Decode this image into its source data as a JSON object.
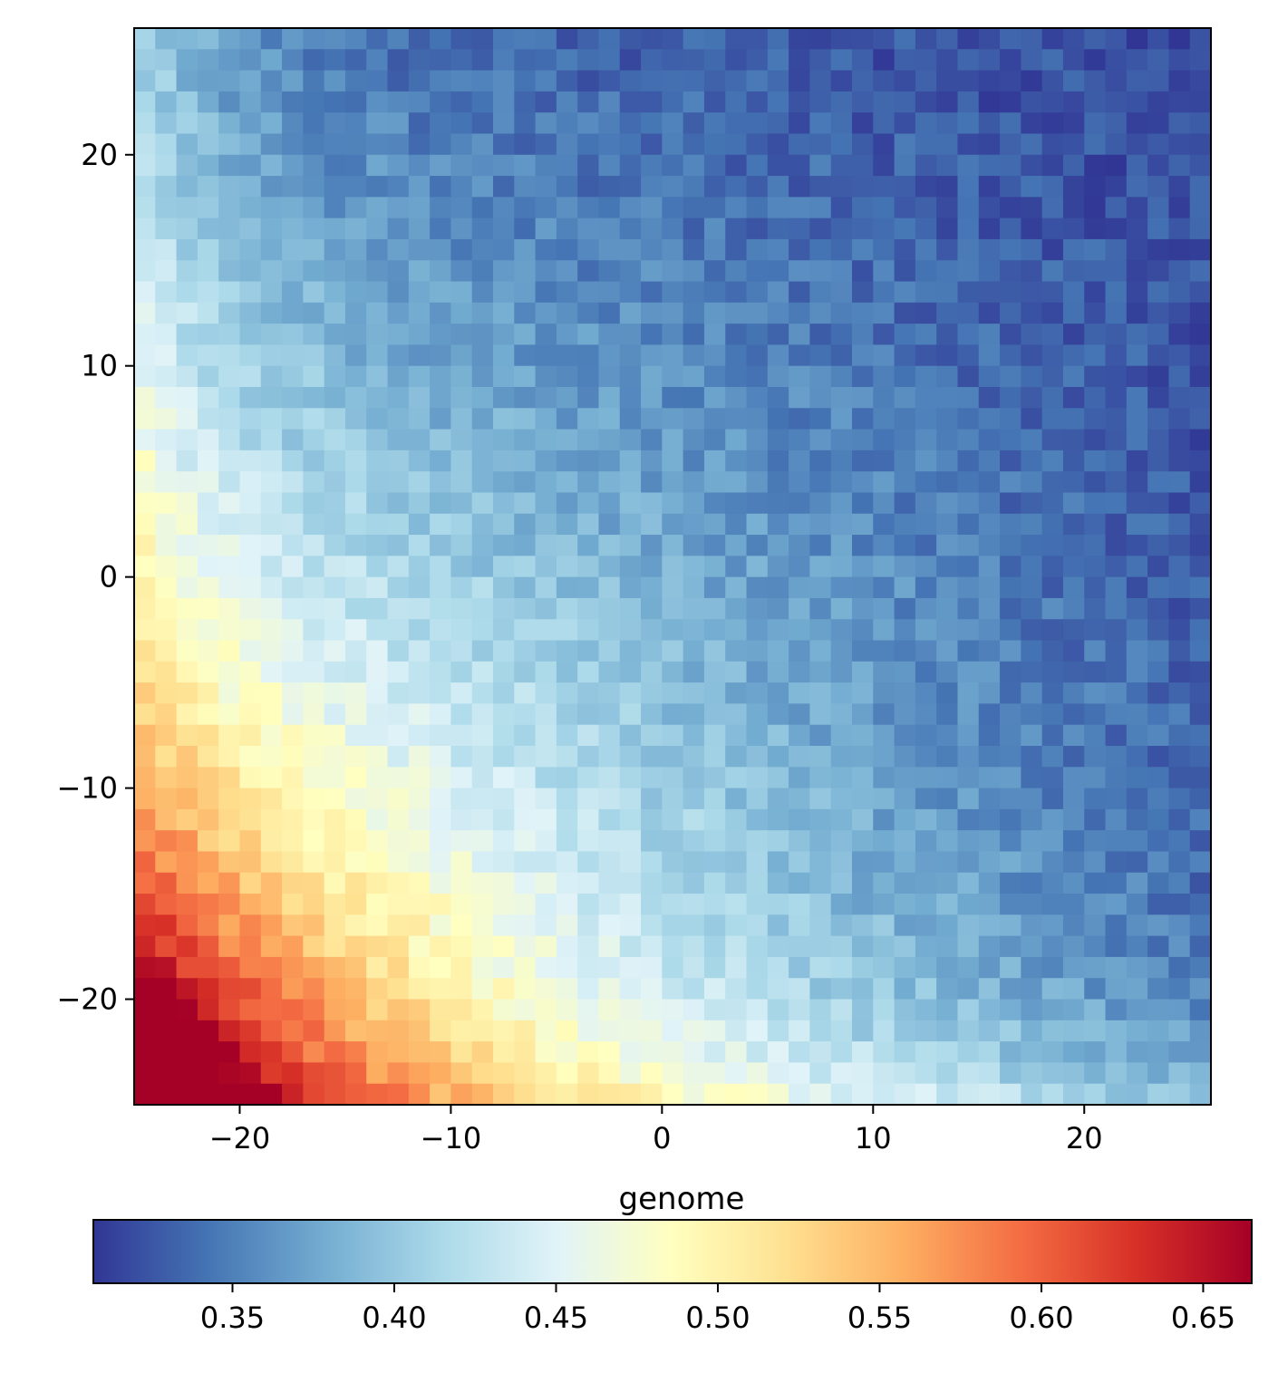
{
  "chart_data": {
    "type": "heatmap",
    "title": "",
    "xlabel": "genome",
    "ylabel": "",
    "grid": false,
    "xlim": [
      -25,
      26
    ],
    "ylim": [
      -25,
      26
    ],
    "x_ticks": [
      -20,
      -10,
      0,
      10,
      20
    ],
    "y_ticks": [
      -20,
      -10,
      0,
      10,
      20
    ],
    "x_tick_labels": [
      "−20",
      "−10",
      "0",
      "10",
      "20"
    ],
    "y_tick_labels": [
      "−20",
      "−10",
      "0",
      "10",
      "20"
    ],
    "grid_cells": [
      51,
      51
    ],
    "colormap": "RdYlBu_r",
    "colorbar": {
      "orientation": "horizontal",
      "position": "bottom",
      "range": [
        0.307,
        0.665
      ],
      "ticks": [
        0.35,
        0.4,
        0.45,
        0.5,
        0.55,
        0.6,
        0.65
      ],
      "tick_labels": [
        "0.35",
        "0.40",
        "0.45",
        "0.50",
        "0.55",
        "0.60",
        "0.65"
      ]
    },
    "value_model": {
      "description": "Values decay from ~0.66 at the lower-left corner (-25,-25) to ~0.31 at the upper-right corner (26,26), with a strong diagonal band of higher values along the left and bottom edges.",
      "corner_lower_left": 0.66,
      "corner_upper_right": 0.32,
      "left_edge_mid": 0.5,
      "bottom_edge_mid": 0.48,
      "center": 0.4
    }
  },
  "colors": {
    "stops": [
      "#313695",
      "#4575b4",
      "#74add1",
      "#abd9e9",
      "#e0f3f8",
      "#ffffbf",
      "#fee090",
      "#fdae61",
      "#f46d43",
      "#d73027",
      "#a50026"
    ]
  }
}
